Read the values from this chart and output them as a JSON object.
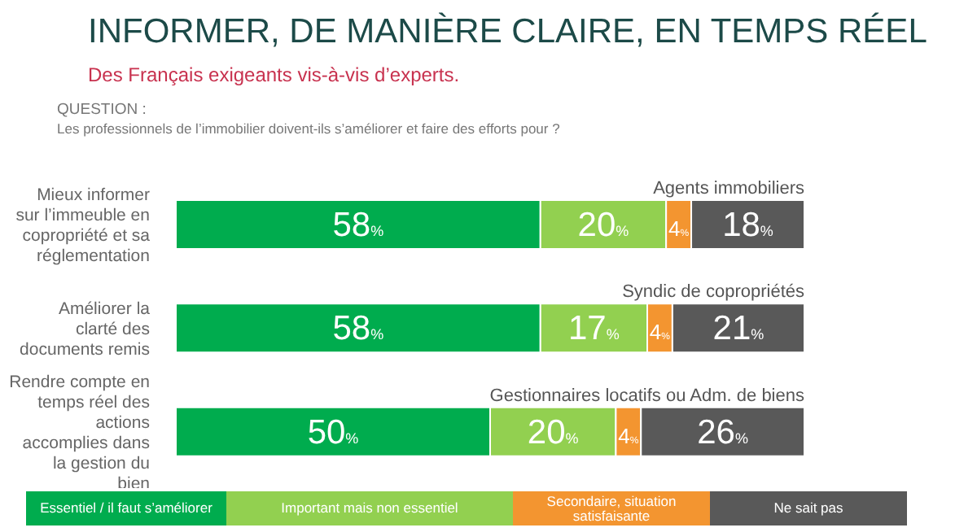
{
  "chart_data": {
    "type": "bar",
    "orientation": "horizontal",
    "stacked": true,
    "title": "INFORMER, DE MANIÈRE CLAIRE, EN TEMPS RÉEL",
    "subtitle": "Des Français exigeants vis-à-vis d’experts.",
    "annotations": [
      "QUESTION :",
      "Les professionnels de l’immobilier doivent-ils s’améliorer et faire des efforts pour ?",
      "Agents immobiliers",
      "Syndic de copropriétés",
      "Gestionnaires locatifs ou Adm. de biens"
    ],
    "categories": [
      "Mieux informer sur l’immeuble en copropriété et sa réglementation",
      "Améliorer la clarté des documents remis",
      "Rendre compte en temps réel des actions accomplies dans la gestion du bien"
    ],
    "series": [
      {
        "name": "Essentiel / il faut s’améliorer",
        "color": "#00ac4e",
        "values": [
          58,
          58,
          50
        ],
        "value_labels": [
          "58%",
          "58%",
          "50%"
        ]
      },
      {
        "name": "Important mais non essentiel",
        "color": "#92d050",
        "values": [
          20,
          17,
          20
        ],
        "value_labels": [
          "20%",
          "17%",
          "20%"
        ]
      },
      {
        "name": "Secondaire, situation satisfaisante",
        "color": "#f39530",
        "values": [
          4,
          4,
          4
        ],
        "value_labels": [
          "4%",
          "4%",
          "4%"
        ]
      },
      {
        "name": "Ne sait pas",
        "color": "#595959",
        "values": [
          18,
          21,
          26
        ],
        "value_labels": [
          "18%",
          "21%",
          "26%"
        ]
      }
    ],
    "legend": "bottom"
  }
}
